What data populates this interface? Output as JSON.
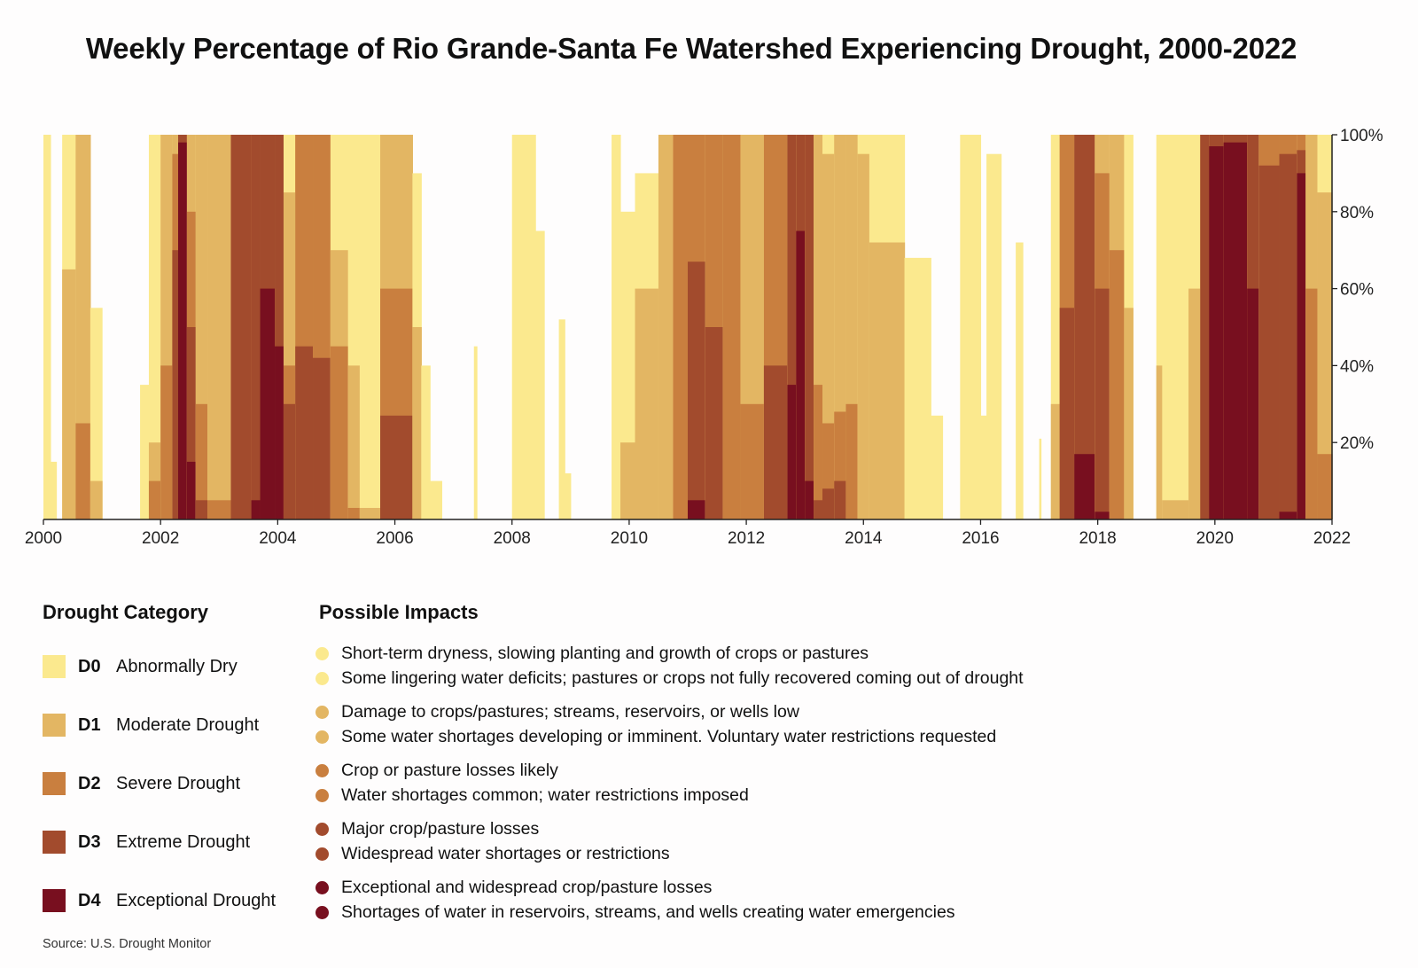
{
  "title": "Weekly Percentage of Rio Grande-Santa Fe Watershed Experiencing Drought, 2000-2022",
  "legend": {
    "category_heading": "Drought Category",
    "impacts_heading": "Possible Impacts",
    "categories": [
      {
        "code": "D0",
        "label": "Abnormally Dry",
        "color": "#fbe98e",
        "impacts": [
          "Short-term dryness, slowing planting and growth of crops or pastures",
          "Some lingering water deficits; pastures or crops not fully recovered coming out of drought"
        ]
      },
      {
        "code": "D1",
        "label": "Moderate Drought",
        "color": "#e3b663",
        "impacts": [
          "Damage to crops/pastures; streams, reservoirs, or wells low",
          "Some water shortages developing or imminent. Voluntary water restrictions requested"
        ]
      },
      {
        "code": "D2",
        "label": "Severe Drought",
        "color": "#c97f3f",
        "impacts": [
          "Crop or pasture losses likely",
          "Water shortages common; water restrictions imposed"
        ]
      },
      {
        "code": "D3",
        "label": "Extreme Drought",
        "color": "#a24b2d",
        "impacts": [
          "Major crop/pasture losses",
          "Widespread water shortages or restrictions"
        ]
      },
      {
        "code": "D4",
        "label": "Exceptional Drought",
        "color": "#780f1f",
        "impacts": [
          "Exceptional and widespread crop/pasture losses",
          "Shortages of water in reservoirs, streams, and wells creating water emergencies"
        ]
      }
    ]
  },
  "source": "Source: U.S. Drought Monitor",
  "chart_data": {
    "type": "area",
    "xlim": [
      2000,
      2022
    ],
    "ylim": [
      0,
      100
    ],
    "x_ticks": [
      "2000",
      "2002",
      "2004",
      "2006",
      "2008",
      "2010",
      "2012",
      "2014",
      "2016",
      "2018",
      "2020",
      "2022"
    ],
    "y_ticks": [
      "20%",
      "40%",
      "60%",
      "80%",
      "100%"
    ],
    "y_axis_side": "right",
    "series_order": [
      "D0",
      "D1",
      "D2",
      "D3",
      "D4"
    ],
    "periods": [
      {
        "start": 2000.0,
        "end": 2000.12,
        "D0": 100,
        "D1": 0,
        "D2": 0,
        "D3": 0,
        "D4": 0
      },
      {
        "start": 2000.12,
        "end": 2000.22,
        "D0": 15,
        "D1": 0,
        "D2": 0,
        "D3": 0,
        "D4": 0
      },
      {
        "start": 2000.32,
        "end": 2000.55,
        "D0": 100,
        "D1": 65,
        "D2": 0,
        "D3": 0,
        "D4": 0
      },
      {
        "start": 2000.55,
        "end": 2000.8,
        "D0": 100,
        "D1": 100,
        "D2": 25,
        "D3": 0,
        "D4": 0
      },
      {
        "start": 2000.8,
        "end": 2001.0,
        "D0": 55,
        "D1": 10,
        "D2": 0,
        "D3": 0,
        "D4": 0
      },
      {
        "start": 2001.65,
        "end": 2001.8,
        "D0": 35,
        "D1": 0,
        "D2": 0,
        "D3": 0,
        "D4": 0
      },
      {
        "start": 2001.8,
        "end": 2002.0,
        "D0": 100,
        "D1": 20,
        "D2": 10,
        "D3": 0,
        "D4": 0
      },
      {
        "start": 2002.0,
        "end": 2002.2,
        "D0": 100,
        "D1": 100,
        "D2": 40,
        "D3": 0,
        "D4": 0
      },
      {
        "start": 2002.2,
        "end": 2002.3,
        "D0": 100,
        "D1": 100,
        "D2": 95,
        "D3": 70,
        "D4": 0
      },
      {
        "start": 2002.3,
        "end": 2002.45,
        "D0": 100,
        "D1": 100,
        "D2": 100,
        "D3": 100,
        "D4": 98
      },
      {
        "start": 2002.45,
        "end": 2002.6,
        "D0": 100,
        "D1": 100,
        "D2": 80,
        "D3": 50,
        "D4": 15
      },
      {
        "start": 2002.6,
        "end": 2002.8,
        "D0": 100,
        "D1": 100,
        "D2": 30,
        "D3": 5,
        "D4": 0
      },
      {
        "start": 2002.8,
        "end": 2003.2,
        "D0": 100,
        "D1": 100,
        "D2": 5,
        "D3": 0,
        "D4": 0
      },
      {
        "start": 2003.2,
        "end": 2003.55,
        "D0": 100,
        "D1": 100,
        "D2": 100,
        "D3": 100,
        "D4": 0
      },
      {
        "start": 2003.55,
        "end": 2003.7,
        "D0": 100,
        "D1": 100,
        "D2": 100,
        "D3": 100,
        "D4": 5
      },
      {
        "start": 2003.7,
        "end": 2003.95,
        "D0": 100,
        "D1": 100,
        "D2": 100,
        "D3": 100,
        "D4": 60
      },
      {
        "start": 2003.95,
        "end": 2004.1,
        "D0": 100,
        "D1": 100,
        "D2": 100,
        "D3": 100,
        "D4": 45
      },
      {
        "start": 2004.1,
        "end": 2004.3,
        "D0": 100,
        "D1": 85,
        "D2": 40,
        "D3": 30,
        "D4": 0
      },
      {
        "start": 2004.3,
        "end": 2004.6,
        "D0": 100,
        "D1": 100,
        "D2": 100,
        "D3": 45,
        "D4": 0
      },
      {
        "start": 2004.6,
        "end": 2004.9,
        "D0": 100,
        "D1": 100,
        "D2": 100,
        "D3": 42,
        "D4": 0
      },
      {
        "start": 2004.9,
        "end": 2005.2,
        "D0": 100,
        "D1": 70,
        "D2": 45,
        "D3": 0,
        "D4": 0
      },
      {
        "start": 2005.2,
        "end": 2005.4,
        "D0": 100,
        "D1": 40,
        "D2": 3,
        "D3": 0,
        "D4": 0
      },
      {
        "start": 2005.4,
        "end": 2005.75,
        "D0": 100,
        "D1": 3,
        "D2": 0,
        "D3": 0,
        "D4": 0
      },
      {
        "start": 2005.75,
        "end": 2006.3,
        "D0": 100,
        "D1": 100,
        "D2": 60,
        "D3": 27,
        "D4": 0
      },
      {
        "start": 2006.3,
        "end": 2006.45,
        "D0": 90,
        "D1": 50,
        "D2": 0,
        "D3": 0,
        "D4": 0
      },
      {
        "start": 2006.45,
        "end": 2006.6,
        "D0": 40,
        "D1": 0,
        "D2": 0,
        "D3": 0,
        "D4": 0
      },
      {
        "start": 2006.6,
        "end": 2006.8,
        "D0": 10,
        "D1": 0,
        "D2": 0,
        "D3": 0,
        "D4": 0
      },
      {
        "start": 2007.35,
        "end": 2007.4,
        "D0": 45,
        "D1": 0,
        "D2": 0,
        "D3": 0,
        "D4": 0
      },
      {
        "start": 2008.0,
        "end": 2008.4,
        "D0": 100,
        "D1": 0,
        "D2": 0,
        "D3": 0,
        "D4": 0
      },
      {
        "start": 2008.4,
        "end": 2008.55,
        "D0": 75,
        "D1": 0,
        "D2": 0,
        "D3": 0,
        "D4": 0
      },
      {
        "start": 2008.8,
        "end": 2008.9,
        "D0": 52,
        "D1": 0,
        "D2": 0,
        "D3": 0,
        "D4": 0
      },
      {
        "start": 2008.9,
        "end": 2009.0,
        "D0": 12,
        "D1": 0,
        "D2": 0,
        "D3": 0,
        "D4": 0
      },
      {
        "start": 2009.7,
        "end": 2009.85,
        "D0": 100,
        "D1": 0,
        "D2": 0,
        "D3": 0,
        "D4": 0
      },
      {
        "start": 2009.85,
        "end": 2010.1,
        "D0": 80,
        "D1": 20,
        "D2": 0,
        "D3": 0,
        "D4": 0
      },
      {
        "start": 2010.1,
        "end": 2010.5,
        "D0": 90,
        "D1": 60,
        "D2": 0,
        "D3": 0,
        "D4": 0
      },
      {
        "start": 2010.5,
        "end": 2010.75,
        "D0": 100,
        "D1": 100,
        "D2": 0,
        "D3": 0,
        "D4": 0
      },
      {
        "start": 2010.75,
        "end": 2011.0,
        "D0": 100,
        "D1": 100,
        "D2": 100,
        "D3": 0,
        "D4": 0
      },
      {
        "start": 2011.0,
        "end": 2011.3,
        "D0": 100,
        "D1": 100,
        "D2": 100,
        "D3": 67,
        "D4": 5
      },
      {
        "start": 2011.3,
        "end": 2011.6,
        "D0": 100,
        "D1": 100,
        "D2": 100,
        "D3": 50,
        "D4": 0
      },
      {
        "start": 2011.6,
        "end": 2011.9,
        "D0": 100,
        "D1": 100,
        "D2": 100,
        "D3": 0,
        "D4": 0
      },
      {
        "start": 2011.9,
        "end": 2012.3,
        "D0": 100,
        "D1": 100,
        "D2": 30,
        "D3": 0,
        "D4": 0
      },
      {
        "start": 2012.3,
        "end": 2012.7,
        "D0": 100,
        "D1": 100,
        "D2": 100,
        "D3": 40,
        "D4": 0
      },
      {
        "start": 2012.7,
        "end": 2012.85,
        "D0": 100,
        "D1": 100,
        "D2": 100,
        "D3": 100,
        "D4": 35
      },
      {
        "start": 2012.85,
        "end": 2013.0,
        "D0": 100,
        "D1": 100,
        "D2": 100,
        "D3": 100,
        "D4": 75
      },
      {
        "start": 2013.0,
        "end": 2013.15,
        "D0": 100,
        "D1": 100,
        "D2": 100,
        "D3": 100,
        "D4": 10
      },
      {
        "start": 2013.15,
        "end": 2013.3,
        "D0": 100,
        "D1": 100,
        "D2": 35,
        "D3": 5,
        "D4": 0
      },
      {
        "start": 2013.3,
        "end": 2013.5,
        "D0": 100,
        "D1": 95,
        "D2": 25,
        "D3": 8,
        "D4": 0
      },
      {
        "start": 2013.5,
        "end": 2013.7,
        "D0": 100,
        "D1": 100,
        "D2": 28,
        "D3": 10,
        "D4": 0
      },
      {
        "start": 2013.7,
        "end": 2013.9,
        "D0": 100,
        "D1": 100,
        "D2": 30,
        "D3": 0,
        "D4": 0
      },
      {
        "start": 2013.9,
        "end": 2014.1,
        "D0": 100,
        "D1": 95,
        "D2": 0,
        "D3": 0,
        "D4": 0
      },
      {
        "start": 2014.1,
        "end": 2014.7,
        "D0": 100,
        "D1": 72,
        "D2": 0,
        "D3": 0,
        "D4": 0
      },
      {
        "start": 2014.7,
        "end": 2015.15,
        "D0": 68,
        "D1": 0,
        "D2": 0,
        "D3": 0,
        "D4": 0
      },
      {
        "start": 2015.15,
        "end": 2015.35,
        "D0": 27,
        "D1": 0,
        "D2": 0,
        "D3": 0,
        "D4": 0
      },
      {
        "start": 2015.65,
        "end": 2016.0,
        "D0": 100,
        "D1": 0,
        "D2": 0,
        "D3": 0,
        "D4": 0
      },
      {
        "start": 2016.0,
        "end": 2016.1,
        "D0": 27,
        "D1": 0,
        "D2": 0,
        "D3": 0,
        "D4": 0
      },
      {
        "start": 2016.1,
        "end": 2016.35,
        "D0": 95,
        "D1": 0,
        "D2": 0,
        "D3": 0,
        "D4": 0
      },
      {
        "start": 2016.6,
        "end": 2016.72,
        "D0": 72,
        "D1": 0,
        "D2": 0,
        "D3": 0,
        "D4": 0
      },
      {
        "start": 2017.0,
        "end": 2017.03,
        "D0": 21,
        "D1": 0,
        "D2": 0,
        "D3": 0,
        "D4": 0
      },
      {
        "start": 2017.2,
        "end": 2017.35,
        "D0": 100,
        "D1": 30,
        "D2": 0,
        "D3": 0,
        "D4": 0
      },
      {
        "start": 2017.35,
        "end": 2017.6,
        "D0": 100,
        "D1": 100,
        "D2": 100,
        "D3": 55,
        "D4": 0
      },
      {
        "start": 2017.6,
        "end": 2017.95,
        "D0": 100,
        "D1": 100,
        "D2": 100,
        "D3": 100,
        "D4": 17
      },
      {
        "start": 2017.95,
        "end": 2018.2,
        "D0": 100,
        "D1": 100,
        "D2": 90,
        "D3": 60,
        "D4": 2
      },
      {
        "start": 2018.2,
        "end": 2018.45,
        "D0": 100,
        "D1": 100,
        "D2": 70,
        "D3": 0,
        "D4": 0
      },
      {
        "start": 2018.45,
        "end": 2018.6,
        "D0": 100,
        "D1": 55,
        "D2": 0,
        "D3": 0,
        "D4": 0
      },
      {
        "start": 2019.0,
        "end": 2019.1,
        "D0": 100,
        "D1": 40,
        "D2": 0,
        "D3": 0,
        "D4": 0
      },
      {
        "start": 2019.1,
        "end": 2019.55,
        "D0": 100,
        "D1": 5,
        "D2": 0,
        "D3": 0,
        "D4": 0
      },
      {
        "start": 2019.55,
        "end": 2019.75,
        "D0": 100,
        "D1": 60,
        "D2": 0,
        "D3": 0,
        "D4": 0
      },
      {
        "start": 2019.75,
        "end": 2019.9,
        "D0": 100,
        "D1": 100,
        "D2": 100,
        "D3": 100,
        "D4": 0
      },
      {
        "start": 2019.9,
        "end": 2020.15,
        "D0": 100,
        "D1": 100,
        "D2": 100,
        "D3": 100,
        "D4": 97
      },
      {
        "start": 2020.15,
        "end": 2020.55,
        "D0": 100,
        "D1": 100,
        "D2": 100,
        "D3": 100,
        "D4": 98
      },
      {
        "start": 2020.55,
        "end": 2020.75,
        "D0": 100,
        "D1": 100,
        "D2": 100,
        "D3": 100,
        "D4": 60
      },
      {
        "start": 2020.75,
        "end": 2021.1,
        "D0": 100,
        "D1": 100,
        "D2": 100,
        "D3": 92,
        "D4": 0
      },
      {
        "start": 2021.1,
        "end": 2021.4,
        "D0": 100,
        "D1": 100,
        "D2": 100,
        "D3": 95,
        "D4": 2
      },
      {
        "start": 2021.4,
        "end": 2021.55,
        "D0": 100,
        "D1": 100,
        "D2": 100,
        "D3": 96,
        "D4": 90
      },
      {
        "start": 2021.55,
        "end": 2021.75,
        "D0": 100,
        "D1": 100,
        "D2": 60,
        "D3": 0,
        "D4": 0
      },
      {
        "start": 2021.75,
        "end": 2022.0,
        "D0": 100,
        "D1": 85,
        "D2": 17,
        "D3": 0,
        "D4": 0
      }
    ]
  }
}
